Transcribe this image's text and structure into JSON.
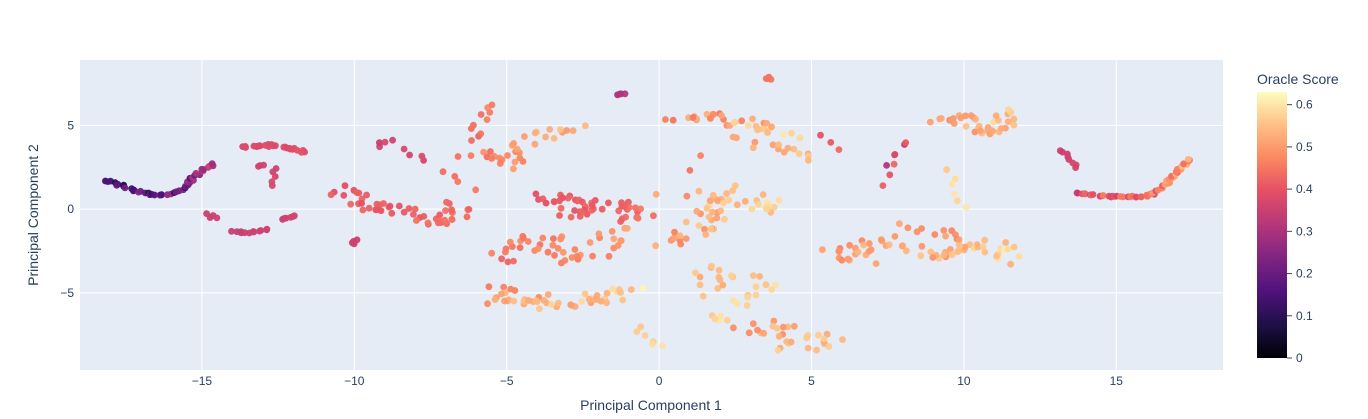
{
  "chart_data": {
    "type": "scatter",
    "xlabel": "Principal Component 1",
    "ylabel": "Principal Component 2",
    "xlim": [
      -19.0,
      18.5
    ],
    "ylim": [
      -9.6,
      8.9
    ],
    "xticks": [
      -15,
      -10,
      -5,
      0,
      5,
      10,
      15
    ],
    "xtick_labels": [
      "−15",
      "−10",
      "−5",
      "0",
      "5",
      "10",
      "15"
    ],
    "yticks": [
      -5,
      0,
      5
    ],
    "ytick_labels": [
      "−5",
      "0",
      "5"
    ],
    "grid": true,
    "plot_background": "#e5ecf6",
    "colorbar": {
      "title": "Oracle Score",
      "colorscale": "magma",
      "range": [
        0,
        0.63
      ],
      "ticks": [
        0,
        0.1,
        0.2,
        0.3,
        0.4,
        0.5,
        0.6
      ],
      "tick_labels": [
        "0",
        "0.1",
        "0.2",
        "0.3",
        "0.4",
        "0.5",
        "0.6"
      ]
    },
    "clusters": [
      {
        "label": "dark arc left",
        "polyline": [
          [
            -18.2,
            1.7
          ],
          [
            -17.8,
            1.5
          ],
          [
            -17.2,
            1.1
          ],
          [
            -16.6,
            0.85
          ],
          [
            -16.0,
            0.9
          ],
          [
            -15.6,
            1.3
          ],
          [
            -15.3,
            1.8
          ],
          [
            -15.0,
            2.3
          ],
          [
            -14.6,
            2.7
          ]
        ],
        "n": 46,
        "spread": 0.05,
        "score": [
          0.02,
          0.38
        ]
      },
      {
        "label": "arc upper -13",
        "polyline": [
          [
            -13.6,
            3.7
          ],
          [
            -13.0,
            3.85
          ],
          [
            -12.5,
            3.75
          ],
          [
            -12.0,
            3.6
          ],
          [
            -11.7,
            3.4
          ]
        ],
        "n": 26,
        "spread": 0.08,
        "score": [
          0.36,
          0.4
        ]
      },
      {
        "label": "points -13 mid",
        "polyline": [
          [
            -13.3,
            2.7
          ],
          [
            -12.8,
            2.5
          ],
          [
            -12.7,
            1.8
          ],
          [
            -12.8,
            1.5
          ]
        ],
        "n": 8,
        "spread": 0.1,
        "score": [
          0.34,
          0.38
        ]
      },
      {
        "label": "segment -14.5 low",
        "polyline": [
          [
            -14.8,
            -0.3
          ],
          [
            -14.6,
            -0.55
          ]
        ],
        "n": 4,
        "spread": 0.05,
        "score": [
          0.34,
          0.36
        ]
      },
      {
        "label": "segment -14 bottom",
        "polyline": [
          [
            -14.0,
            -1.35
          ],
          [
            -13.5,
            -1.4
          ],
          [
            -13.0,
            -1.3
          ],
          [
            -12.8,
            -1.2
          ]
        ],
        "n": 12,
        "spread": 0.04,
        "score": [
          0.34,
          0.36
        ]
      },
      {
        "label": "segment -12 low",
        "polyline": [
          [
            -12.4,
            -0.6
          ],
          [
            -12.0,
            -0.4
          ]
        ],
        "n": 6,
        "spread": 0.04,
        "score": [
          0.34,
          0.37
        ]
      },
      {
        "label": "band -10 to -7",
        "polyline": [
          [
            -10.5,
            1.3
          ],
          [
            -10.0,
            0.7
          ],
          [
            -9.5,
            0.2
          ],
          [
            -8.5,
            0.0
          ],
          [
            -7.8,
            -0.3
          ],
          [
            -7.2,
            -0.9
          ],
          [
            -6.8,
            -0.6
          ],
          [
            -6.5,
            0.3
          ]
        ],
        "n": 50,
        "spread": 0.22,
        "score": [
          0.38,
          0.46
        ]
      },
      {
        "label": "points -10 low",
        "polyline": [
          [
            -10.0,
            -1.8
          ],
          [
            -10.0,
            -2.1
          ]
        ],
        "n": 4,
        "spread": 0.05,
        "score": [
          0.34,
          0.36
        ]
      },
      {
        "label": "points -9 upper",
        "polyline": [
          [
            -9.3,
            3.6
          ],
          [
            -8.8,
            4.2
          ],
          [
            -8.5,
            3.3
          ],
          [
            -8.0,
            3.0
          ],
          [
            -7.7,
            3.2
          ]
        ],
        "n": 8,
        "spread": 0.15,
        "score": [
          0.33,
          0.42
        ]
      },
      {
        "label": "arc -6 upper",
        "polyline": [
          [
            -6.1,
            4.1
          ],
          [
            -5.8,
            5.6
          ],
          [
            -5.4,
            6.2
          ]
        ],
        "n": 10,
        "spread": 0.1,
        "score": [
          0.42,
          0.48
        ]
      },
      {
        "label": "arc -6 to -3 mid",
        "polyline": [
          [
            -6.3,
            3.2
          ],
          [
            -5.6,
            3.3
          ],
          [
            -5.0,
            2.6
          ],
          [
            -4.6,
            3.6
          ],
          [
            -4.0,
            4.4
          ],
          [
            -3.2,
            4.6
          ],
          [
            -2.8,
            4.8
          ]
        ],
        "n": 32,
        "spread": 0.22,
        "score": [
          0.42,
          0.56
        ]
      },
      {
        "label": "arc -6 right",
        "polyline": [
          [
            -7.1,
            2.3
          ],
          [
            -6.5,
            1.7
          ],
          [
            -6.2,
            1.2
          ]
        ],
        "n": 4,
        "spread": 0.1,
        "score": [
          0.42,
          0.46
        ]
      },
      {
        "label": "points -1 top",
        "polyline": [
          [
            -1.4,
            6.85
          ],
          [
            -1.1,
            6.9
          ]
        ],
        "n": 4,
        "spread": 0.03,
        "score": [
          0.3,
          0.32
        ]
      },
      {
        "label": "band -4 to 0 mid",
        "polyline": [
          [
            -4.0,
            0.7
          ],
          [
            -3.0,
            0.6
          ],
          [
            -2.5,
            -0.3
          ],
          [
            -1.5,
            0.3
          ],
          [
            -0.9,
            0.0
          ],
          [
            -0.5,
            -0.6
          ]
        ],
        "n": 50,
        "spread": 0.3,
        "score": [
          0.38,
          0.46
        ]
      },
      {
        "label": "band -5 to -1 lower",
        "polyline": [
          [
            -5.2,
            -3.0
          ],
          [
            -4.4,
            -2.3
          ],
          [
            -4.0,
            -1.5
          ],
          [
            -3.2,
            -2.6
          ],
          [
            -2.6,
            -3.1
          ],
          [
            -2.0,
            -2.4
          ],
          [
            -1.5,
            -1.5
          ],
          [
            -1.2,
            -1.2
          ]
        ],
        "n": 45,
        "spread": 0.3,
        "score": [
          0.42,
          0.52
        ]
      },
      {
        "label": "band -5 to -1 bottom",
        "polyline": [
          [
            -5.5,
            -4.6
          ],
          [
            -5.0,
            -5.6
          ],
          [
            -4.3,
            -5.2
          ],
          [
            -3.5,
            -5.9
          ],
          [
            -2.5,
            -5.3
          ],
          [
            -1.6,
            -5.4
          ],
          [
            -1.1,
            -4.6
          ]
        ],
        "n": 50,
        "spread": 0.3,
        "score": [
          0.45,
          0.62
        ]
      },
      {
        "label": "points 0 bottom",
        "polyline": [
          [
            -0.8,
            -7.1
          ],
          [
            -0.3,
            -7.9
          ],
          [
            0.2,
            -8.2
          ]
        ],
        "n": 6,
        "spread": 0.1,
        "score": [
          0.55,
          0.6
        ]
      },
      {
        "label": "band 1 to 4 top",
        "polyline": [
          [
            0.7,
            5.3
          ],
          [
            1.5,
            5.5
          ],
          [
            2.2,
            5.4
          ],
          [
            3.0,
            5.1
          ],
          [
            3.6,
            4.9
          ],
          [
            4.2,
            4.5
          ]
        ],
        "n": 34,
        "spread": 0.25,
        "score": [
          0.42,
          0.62
        ]
      },
      {
        "label": "points 3.5 top",
        "polyline": [
          [
            3.5,
            7.9
          ],
          [
            3.6,
            7.7
          ]
        ],
        "n": 4,
        "spread": 0.05,
        "score": [
          0.43,
          0.46
        ]
      },
      {
        "label": "band 3 to 5 mid",
        "polyline": [
          [
            2.5,
            4.3
          ],
          [
            3.2,
            3.8
          ],
          [
            4.8,
            3.5
          ],
          [
            5.3,
            2.8
          ]
        ],
        "n": 14,
        "spread": 0.2,
        "score": [
          0.48,
          0.58
        ]
      },
      {
        "label": "points 5.5 upper",
        "polyline": [
          [
            5.4,
            4.4
          ],
          [
            5.8,
            3.6
          ]
        ],
        "n": 3,
        "spread": 0.05,
        "score": [
          0.4,
          0.44
        ]
      },
      {
        "label": "band 0 to 4 center",
        "polyline": [
          [
            0.3,
            -1.9
          ],
          [
            0.9,
            -1.7
          ],
          [
            1.5,
            -0.8
          ],
          [
            2.0,
            0.3
          ],
          [
            2.6,
            0.3
          ],
          [
            3.5,
            0.3
          ],
          [
            3.3,
            -0.1
          ]
        ],
        "n": 45,
        "spread": 0.3,
        "score": [
          0.45,
          0.62
        ]
      },
      {
        "label": "band 1.5 to 4 lower",
        "polyline": [
          [
            1.5,
            -5.1
          ],
          [
            1.9,
            -3.6
          ],
          [
            2.4,
            -4.0
          ],
          [
            3.2,
            -4.3
          ],
          [
            3.4,
            -4.8
          ],
          [
            2.7,
            -5.5
          ],
          [
            2.0,
            -6.8
          ]
        ],
        "n": 30,
        "spread": 0.3,
        "score": [
          0.5,
          0.62
        ]
      },
      {
        "label": "band 3 to 5.5 bottom",
        "polyline": [
          [
            2.8,
            -7.4
          ],
          [
            3.5,
            -7.0
          ],
          [
            4.2,
            -6.8
          ],
          [
            4.5,
            -8.3
          ],
          [
            5.3,
            -7.6
          ],
          [
            5.6,
            -8.2
          ]
        ],
        "n": 30,
        "spread": 0.3,
        "score": [
          0.45,
          0.62
        ]
      },
      {
        "label": "points 2 to 4 middle",
        "polyline": [
          [
            0.3,
            1.0
          ],
          [
            1.1,
            1.0
          ],
          [
            2.2,
            1.2
          ],
          [
            3.0,
            0.9
          ]
        ],
        "n": 8,
        "spread": 0.25,
        "score": [
          0.45,
          0.6
        ]
      },
      {
        "label": "points 0.5 to 2 upper",
        "polyline": [
          [
            0.9,
            2.3
          ],
          [
            1.4,
            3.2
          ]
        ],
        "n": 2,
        "spread": 0.05,
        "score": [
          0.44,
          0.47
        ]
      },
      {
        "label": "band 5.5 to 8",
        "polyline": [
          [
            5.7,
            -3.0
          ],
          [
            6.1,
            -2.0
          ],
          [
            6.8,
            -3.2
          ],
          [
            7.3,
            -1.6
          ],
          [
            8.0,
            -2.8
          ]
        ],
        "n": 28,
        "spread": 0.3,
        "score": [
          0.46,
          0.56
        ]
      },
      {
        "label": "band 8 to 11 lower",
        "polyline": [
          [
            8.2,
            -1.2
          ],
          [
            9.0,
            -1.4
          ],
          [
            9.5,
            -3.0
          ],
          [
            10.0,
            -2.5
          ],
          [
            10.5,
            -1.8
          ],
          [
            11.0,
            -3.0
          ],
          [
            11.5,
            -2.4
          ]
        ],
        "n": 45,
        "spread": 0.35,
        "score": [
          0.45,
          0.62
        ]
      },
      {
        "label": "band 8.5 to 11.5 upper",
        "polyline": [
          [
            9.2,
            5.3
          ],
          [
            9.8,
            5.6
          ],
          [
            10.3,
            4.8
          ],
          [
            11.0,
            4.6
          ],
          [
            11.5,
            5.8
          ]
        ],
        "n": 36,
        "spread": 0.2,
        "score": [
          0.45,
          0.6
        ]
      },
      {
        "label": "points 9.5 to 10 mid",
        "polyline": [
          [
            9.6,
            2.3
          ],
          [
            9.8,
            1.4
          ],
          [
            10.0,
            0.1
          ]
        ],
        "n": 6,
        "spread": 0.1,
        "score": [
          0.55,
          0.62
        ]
      },
      {
        "label": "points 7 to 8 purple",
        "polyline": [
          [
            7.5,
            2.6
          ],
          [
            8.1,
            4.2
          ],
          [
            7.3,
            1.4
          ]
        ],
        "n": 8,
        "spread": 0.05,
        "score": [
          0.3,
          0.46
        ]
      },
      {
        "label": "points 13 to 13.5",
        "polyline": [
          [
            13.1,
            3.5
          ],
          [
            13.3,
            3.3
          ],
          [
            13.7,
            2.5
          ]
        ],
        "n": 8,
        "spread": 0.05,
        "score": [
          0.34,
          0.38
        ]
      },
      {
        "label": "arc 13.5 to 17",
        "polyline": [
          [
            13.7,
            1.0
          ],
          [
            14.5,
            0.8
          ],
          [
            15.3,
            0.7
          ],
          [
            15.8,
            0.75
          ],
          [
            16.2,
            0.9
          ],
          [
            16.7,
            1.6
          ],
          [
            17.4,
            3.0
          ]
        ],
        "n": 55,
        "spread": 0.05,
        "score": [
          0.32,
          0.56
        ]
      }
    ]
  }
}
